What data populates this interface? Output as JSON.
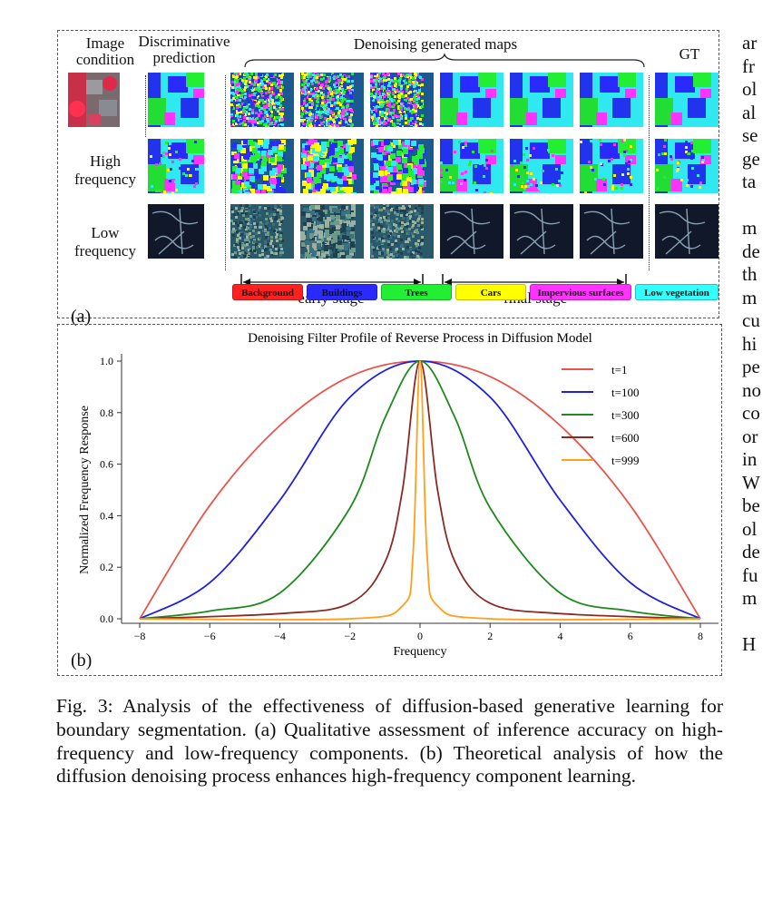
{
  "panel_a": {
    "label": "(a)",
    "col_image_condition": "Image condition",
    "col_discriminative": "Discriminative prediction",
    "col_denoising": "Denoising generated maps",
    "col_gt": "GT",
    "row_high": "High frequency",
    "row_low": "Low frequency",
    "early_stage": "early stage",
    "final_stage": "final stage",
    "legend": [
      {
        "label": "Background",
        "color": "#ff2020"
      },
      {
        "label": "Buildings",
        "color": "#2a2aff"
      },
      {
        "label": "Trees",
        "color": "#22ee33"
      },
      {
        "label": "Cars",
        "color": "#ffff00"
      },
      {
        "label": "Impervious surfaces",
        "color": "#ff33ff"
      },
      {
        "label": "Low vegetation",
        "color": "#33ffff"
      }
    ]
  },
  "panel_b": {
    "label": "(b)"
  },
  "chart_data": {
    "type": "line",
    "title": "Denoising Filter Profile of Reverse Process in Diffusion Model",
    "xlabel": "Frequency",
    "ylabel": "Normalized Frequency Response",
    "xlim": [
      -8,
      8
    ],
    "ylim": [
      0,
      1
    ],
    "xticks": [
      "−8",
      "−6",
      "−4",
      "−2",
      "0",
      "2",
      "4",
      "6",
      "8"
    ],
    "yticks": [
      "0.0",
      "0.2",
      "0.4",
      "0.6",
      "0.8",
      "1.0"
    ],
    "legend_position": "top-right",
    "grid": false,
    "series": [
      {
        "name": "t=1",
        "color": "#e8554a",
        "x": [
          -8,
          -6,
          -4,
          -2,
          0,
          2,
          4,
          6,
          8
        ],
        "y": [
          0.0,
          0.44,
          0.75,
          0.94,
          1.0,
          0.94,
          0.75,
          0.44,
          0.0
        ]
      },
      {
        "name": "t=100",
        "color": "#1f1fe0",
        "x": [
          -8,
          -6,
          -4,
          -2,
          0,
          2,
          4,
          6,
          8
        ],
        "y": [
          0.0,
          0.14,
          0.46,
          0.86,
          1.0,
          0.86,
          0.46,
          0.14,
          0.0
        ]
      },
      {
        "name": "t=300",
        "color": "#1e8a1e",
        "x": [
          -8,
          -6,
          -4,
          -2,
          -1,
          0,
          1,
          2,
          4,
          6,
          8
        ],
        "y": [
          0.0,
          0.03,
          0.1,
          0.43,
          0.78,
          1.0,
          0.78,
          0.43,
          0.1,
          0.03,
          0.0
        ]
      },
      {
        "name": "t=600",
        "color": "#8b2a22",
        "x": [
          -8,
          -4,
          -2,
          -1,
          -0.5,
          0,
          0.5,
          1,
          2,
          4,
          8
        ],
        "y": [
          0.0,
          0.02,
          0.06,
          0.22,
          0.5,
          1.0,
          0.5,
          0.22,
          0.06,
          0.02,
          0.0
        ]
      },
      {
        "name": "t=999",
        "color": "#ff9f1a",
        "x": [
          -8,
          -2,
          -0.5,
          -0.2,
          0,
          0.2,
          0.5,
          2,
          8
        ],
        "y": [
          0.0,
          0.0,
          0.05,
          0.25,
          1.0,
          0.25,
          0.05,
          0.0,
          0.0
        ]
      }
    ]
  },
  "caption": "Fig. 3: Analysis of the effectiveness of diffusion-based generative learning for boundary segmentation. (a) Qualitative assessment of inference accuracy on high-frequency and low-frequency components. (b) Theoretical analysis of how the diffusion denoising process enhances high-frequency component learning.",
  "side_text": [
    "ar",
    "fr",
    "ol",
    "al",
    "se",
    "ge",
    "ta",
    "",
    "m",
    "de",
    "th",
    "m",
    "cu",
    "hi",
    "pe",
    "no",
    "co",
    "or",
    "in",
    "W",
    "be",
    "ol",
    "de",
    "fu",
    "m",
    "",
    "H"
  ]
}
